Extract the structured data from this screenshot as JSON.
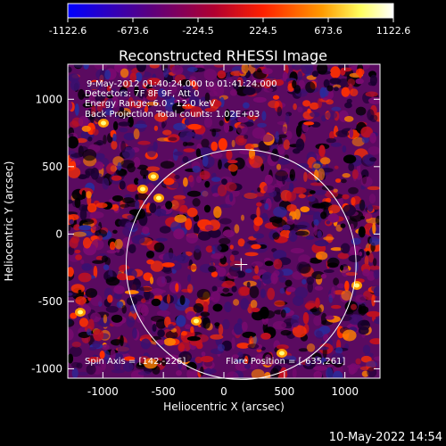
{
  "colorbar": {
    "ticks": [
      "-1122.6",
      "-673.6",
      "-224.5",
      "224.5",
      "673.6",
      "1122.6"
    ]
  },
  "plot": {
    "title": "Reconstructed RHESSI Image",
    "xlabel": "Heliocentric X (arcsec)",
    "ylabel": "Heliocentric Y (arcsec)",
    "xticks": [
      "-1000",
      "-500",
      "0",
      "500",
      "1000"
    ],
    "yticks": [
      "1000",
      "500",
      "0",
      "-500",
      "-1000"
    ],
    "xlim": [
      -1290,
      1290
    ],
    "ylim": [
      -1070,
      1260
    ],
    "tick_values": [
      -1000,
      -500,
      0,
      500,
      1000
    ],
    "sun_center": [
      142,
      -226
    ],
    "sun_radius_arcsec": 950
  },
  "info": {
    "line1": "9-May-2012 01:40:24.000 to 01:41:24.000",
    "line2": "Detectors: 7F 8F 9F, Att 0",
    "line3": "Energy Range: 6.0 - 12.0 keV",
    "line4": "Back Projection    Total counts: 1.02E+03",
    "spin_axis": "Spin Axis = [142,-226]",
    "flare_position": "Flare Position = [-635,261]"
  },
  "footer": {
    "timestamp": "10-May-2022 14:54"
  },
  "colors": {
    "background": "#000000",
    "foreground": "#ffffff",
    "colormap": [
      "#0000ff",
      "#5a0080",
      "#b00030",
      "#ff2000",
      "#ff9a00",
      "#ffff60",
      "#ffffff"
    ]
  }
}
